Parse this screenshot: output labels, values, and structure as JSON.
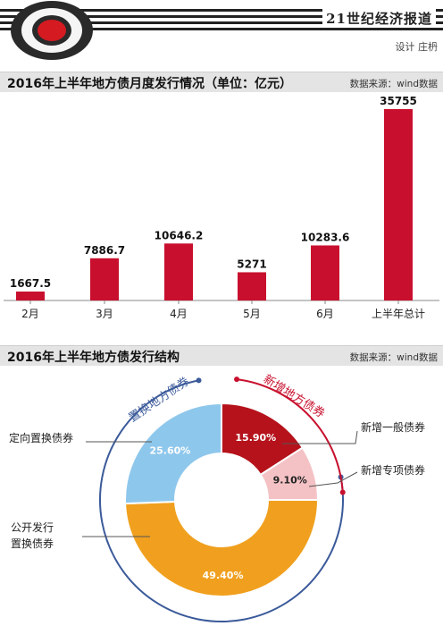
{
  "header": {
    "paper_name": "21世纪经济报道",
    "designer": "设计 庄枬"
  },
  "colors": {
    "bar_red": "#c8102e",
    "replacement_blue": "#3b5a9a",
    "new_red": "#c8102e",
    "slice_light_blue": "#8ec7ec",
    "slice_orange": "#f0a01e",
    "slice_dark_red": "#b5121b",
    "slice_pink": "#f4c2c5"
  },
  "section1": {
    "title": "2016年上半年地方债月度发行情况（单位：亿元）",
    "source": "数据来源：wind数据"
  },
  "section2": {
    "title": "2016年上半年地方债发行结构",
    "source": "数据来源：wind数据"
  },
  "chart_data": [
    {
      "type": "bar",
      "title": "2016年上半年地方债月度发行情况（单位：亿元）",
      "categories": [
        "2月",
        "3月",
        "4月",
        "5月",
        "6月",
        "上半年总计"
      ],
      "values": [
        1667.5,
        7886.7,
        10646.2,
        5271,
        10283.6,
        35755
      ],
      "value_labels": [
        "1667.5",
        "7886.7",
        "10646.2",
        "5271",
        "10283.6",
        "35755"
      ],
      "ylim": [
        0,
        35755
      ],
      "grid": false,
      "bar_color": "#c8102e"
    },
    {
      "type": "pie",
      "title": "2016年上半年地方债发行结构",
      "donut": true,
      "slices": [
        {
          "name": "新增一般债券",
          "value": 15.9,
          "label": "15.90%",
          "color": "#b5121b"
        },
        {
          "name": "新增专项债券",
          "value": 9.1,
          "label": "9.10%",
          "color": "#f4c2c5"
        },
        {
          "name": "公开发行置换债券",
          "value": 49.4,
          "label": "49.40%",
          "color": "#f0a01e"
        },
        {
          "name": "定向置换债券",
          "value": 25.6,
          "label": "25.60%",
          "color": "#8ec7ec"
        }
      ],
      "callouts": {
        "new_general": "新增一般债券",
        "new_special": "新增专项债券",
        "public_line1": "公开发行",
        "public_line2": "置换债券",
        "directed": "定向置换债券"
      },
      "groups": {
        "replacement": "置换地方债券",
        "new": "新增地方债券"
      }
    }
  ]
}
